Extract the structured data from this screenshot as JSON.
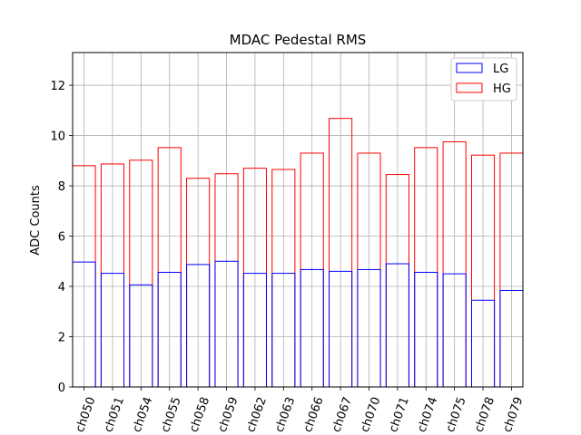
{
  "chart_data": {
    "type": "bar",
    "title": "MDAC Pedestal RMS",
    "xlabel": "",
    "ylabel": "ADC Counts",
    "ylim": [
      0,
      13.3
    ],
    "yticks": [
      0,
      2,
      4,
      6,
      8,
      10,
      12
    ],
    "grid": true,
    "legend_position": "top-right",
    "categories": [
      "ch050",
      "ch051",
      "ch054",
      "ch055",
      "ch058",
      "ch059",
      "ch062",
      "ch063",
      "ch066",
      "ch067",
      "ch070",
      "ch071",
      "ch074",
      "ch075",
      "ch078",
      "ch079"
    ],
    "series": [
      {
        "name": "LG",
        "color": "#0000ff",
        "values": [
          4.97,
          4.52,
          4.06,
          4.56,
          4.87,
          5.0,
          4.52,
          4.52,
          4.67,
          4.6,
          4.67,
          4.9,
          4.56,
          4.5,
          3.45,
          3.84
        ]
      },
      {
        "name": "HG",
        "color": "#ff0000",
        "values": [
          8.8,
          8.87,
          9.02,
          9.52,
          8.3,
          8.48,
          8.7,
          8.65,
          9.3,
          10.68,
          9.3,
          8.45,
          9.52,
          9.75,
          9.22,
          9.3
        ]
      }
    ]
  }
}
